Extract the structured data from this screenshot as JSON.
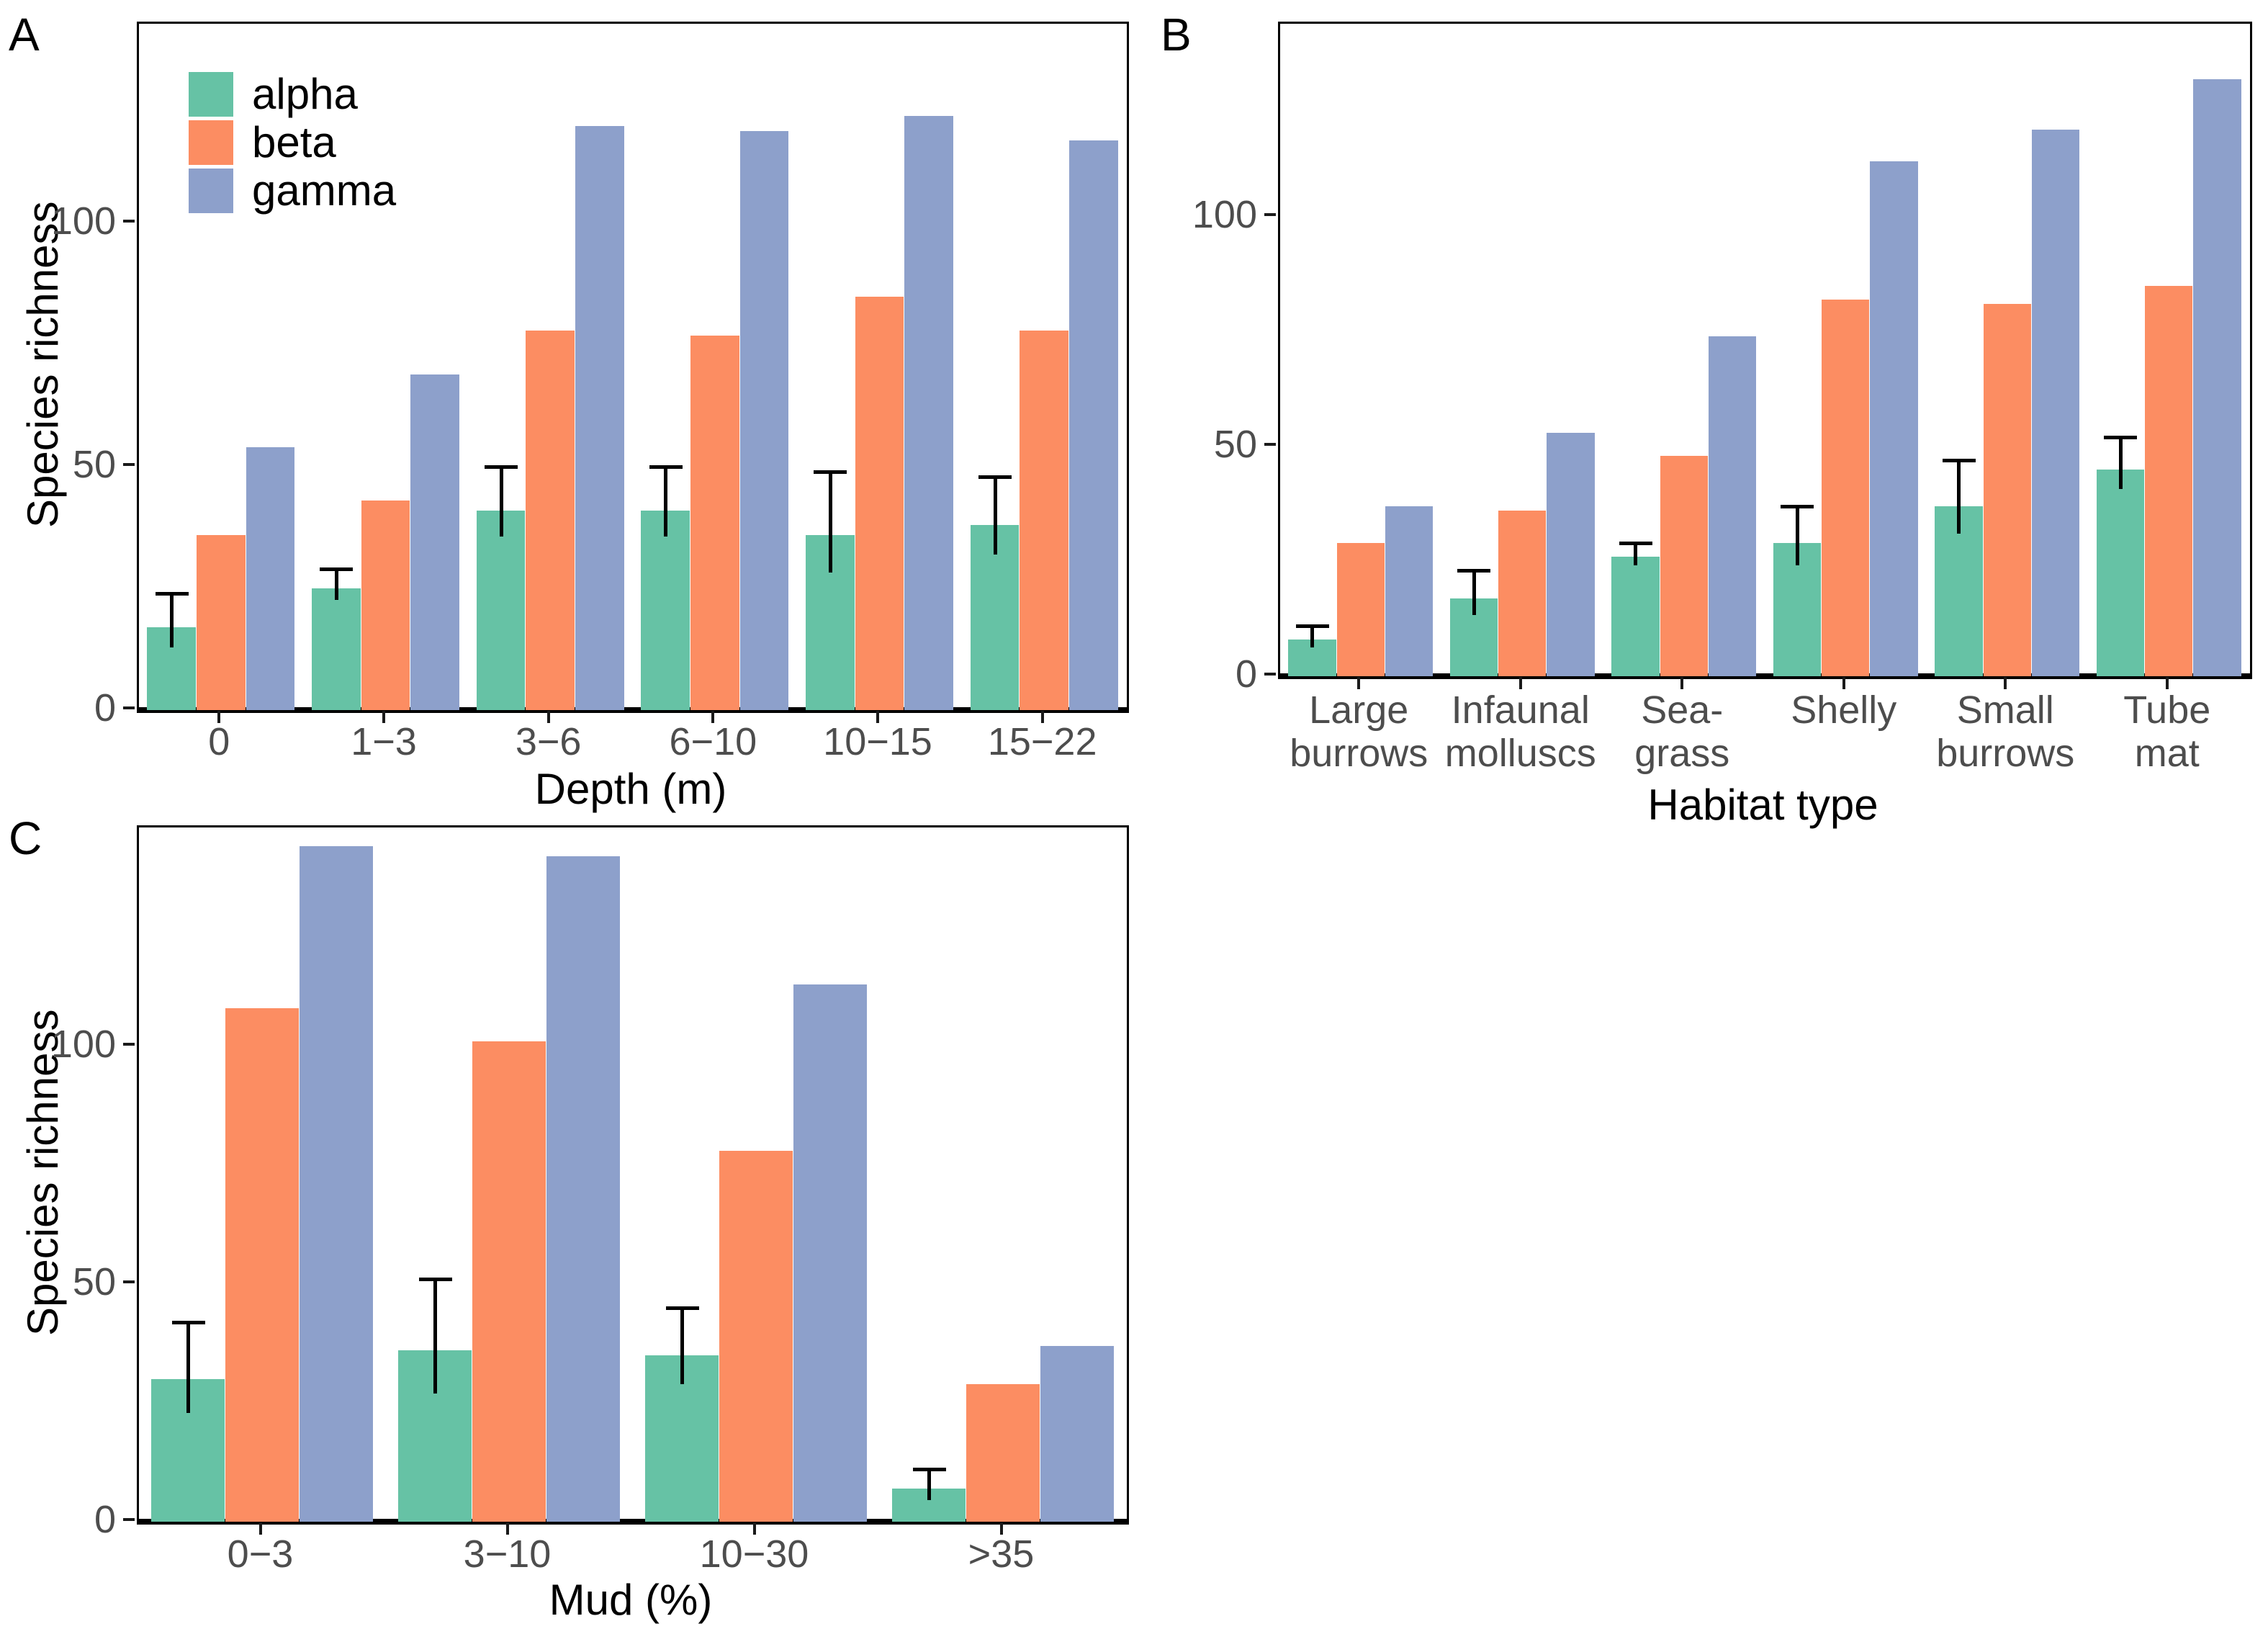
{
  "figure": {
    "panels": [
      {
        "label": "A",
        "x_title": "Depth (m)",
        "y_title": "Species richness"
      },
      {
        "label": "B",
        "x_title": "Habitat type",
        "y_title": ""
      },
      {
        "label": "C",
        "x_title": "Mud (%)",
        "y_title": "Species richness"
      }
    ],
    "legend": {
      "items": [
        {
          "label": "alpha",
          "color": "#66C2A5"
        },
        {
          "label": "beta",
          "color": "#FC8D62"
        },
        {
          "label": "gamma",
          "color": "#8DA0CB"
        }
      ]
    },
    "colors": {
      "axis_text": "#4D4D4D",
      "axis_title": "#000000",
      "panel_border": "#000000",
      "error_bar": "#000000",
      "background": "#FFFFFF"
    }
  },
  "chart_data": [
    {
      "type": "bar",
      "panel": "A",
      "xlabel": "Depth (m)",
      "ylabel": "Species richness",
      "categories": [
        "0",
        "1−3",
        "3−6",
        "6−10",
        "10−15",
        "15−22"
      ],
      "series": [
        {
          "name": "alpha",
          "color": "#66C2A5",
          "values": [
            17,
            25,
            41,
            41,
            36,
            38
          ],
          "error_top": [
            24,
            29,
            50,
            50,
            49,
            48
          ]
        },
        {
          "name": "beta",
          "color": "#FC8D62",
          "values": [
            36,
            43,
            78,
            77,
            85,
            78
          ]
        },
        {
          "name": "gamma",
          "color": "#8DA0CB",
          "values": [
            54,
            69,
            120,
            119,
            122,
            117
          ]
        }
      ],
      "ylim": [
        0,
        141
      ],
      "yticks": [
        0,
        50,
        100
      ],
      "grid": false,
      "legend_position": "inside-top-left"
    },
    {
      "type": "bar",
      "panel": "B",
      "xlabel": "Habitat type",
      "ylabel": "",
      "categories": [
        "Large\nburrows",
        "Infaunal\nmolluscs",
        "Sea-\ngrass",
        "Shelly",
        "Small\nburrows",
        "Tube\nmat"
      ],
      "series": [
        {
          "name": "alpha",
          "color": "#66C2A5",
          "values": [
            8,
            17,
            26,
            29,
            37,
            45
          ],
          "error_top": [
            11,
            23,
            29,
            37,
            47,
            52
          ]
        },
        {
          "name": "beta",
          "color": "#FC8D62",
          "values": [
            29,
            36,
            48,
            82,
            81,
            85
          ]
        },
        {
          "name": "gamma",
          "color": "#8DA0CB",
          "values": [
            37,
            53,
            74,
            112,
            119,
            130
          ]
        }
      ],
      "ylim": [
        0,
        142
      ],
      "yticks": [
        0,
        50,
        100
      ],
      "grid": false,
      "legend_position": "none"
    },
    {
      "type": "bar",
      "panel": "C",
      "xlabel": "Mud (%)",
      "ylabel": "Species richness",
      "categories": [
        "0−3",
        "3−10",
        "10−30",
        ">35"
      ],
      "series": [
        {
          "name": "alpha",
          "color": "#66C2A5",
          "values": [
            30,
            36,
            35,
            7
          ],
          "error_top": [
            42,
            51,
            45,
            11
          ]
        },
        {
          "name": "beta",
          "color": "#FC8D62",
          "values": [
            108,
            101,
            78,
            29
          ]
        },
        {
          "name": "gamma",
          "color": "#8DA0CB",
          "values": [
            142,
            140,
            113,
            37
          ]
        }
      ],
      "ylim": [
        0,
        146
      ],
      "yticks": [
        0,
        50,
        100
      ],
      "grid": false,
      "legend_position": "none"
    }
  ]
}
